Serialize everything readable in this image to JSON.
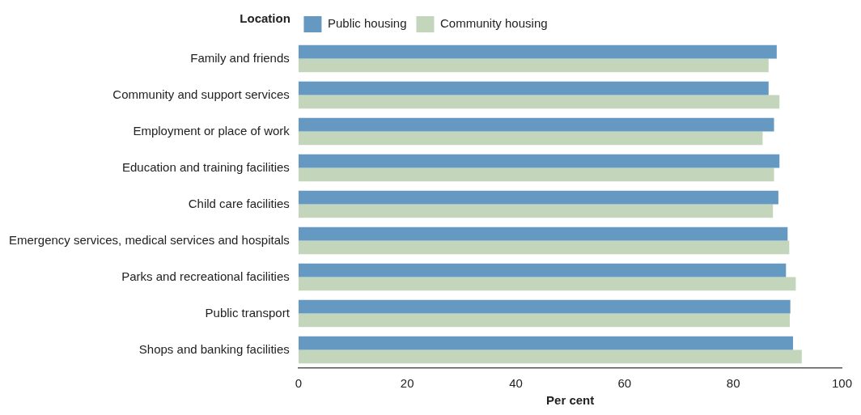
{
  "chart_data": {
    "type": "bar",
    "orientation": "horizontal",
    "ylabel": "Location",
    "xlabel": "Per cent",
    "categories": [
      "Family and friends",
      "Community and support services",
      "Employment or place of work",
      "Education and training facilities",
      "Child care facilities",
      "Emergency services, medical services and hospitals",
      "Parks and recreational facilities",
      "Public transport",
      "Shops and banking facilities"
    ],
    "series": [
      {
        "name": "Public housing",
        "color": "#6699c2",
        "values": [
          88,
          86.5,
          87.5,
          88.5,
          88.3,
          90,
          89.7,
          90.5,
          91
        ]
      },
      {
        "name": "Community housing",
        "color": "#c3d6bb",
        "values": [
          86.5,
          88.5,
          85.4,
          87.5,
          87.3,
          90.3,
          91.5,
          90.4,
          92.6
        ]
      }
    ],
    "xlim": [
      0,
      100
    ],
    "xticks": [
      0,
      20,
      40,
      60,
      80,
      100
    ],
    "grid": false,
    "legend": "top"
  }
}
